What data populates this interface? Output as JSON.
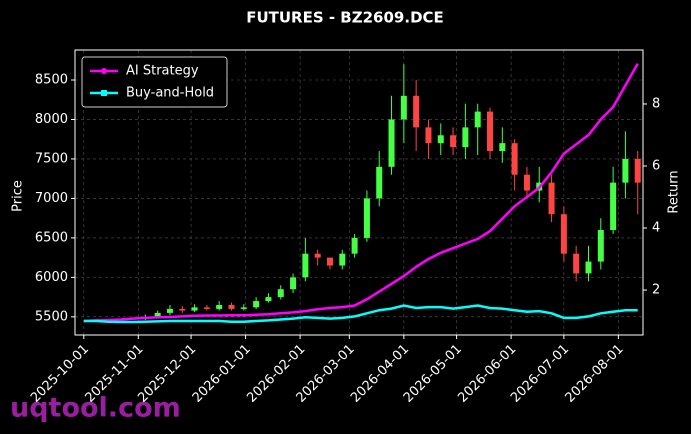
{
  "chart_data": {
    "type": "candlestick",
    "title": "FUTURES - BZ2609.DCE",
    "ylabel": "Price",
    "y2label": "Return",
    "watermark": "uqtool.com",
    "x": [
      "2025-10-01",
      "2025-10-08",
      "2025-10-15",
      "2025-10-22",
      "2025-10-29",
      "2025-11-05",
      "2025-11-12",
      "2025-11-19",
      "2025-11-26",
      "2025-12-03",
      "2025-12-10",
      "2025-12-17",
      "2025-12-24",
      "2025-12-31",
      "2026-01-07",
      "2026-01-14",
      "2026-01-21",
      "2026-01-28",
      "2026-02-04",
      "2026-02-11",
      "2026-02-18",
      "2026-02-25",
      "2026-03-04",
      "2026-03-11",
      "2026-03-18",
      "2026-03-25",
      "2026-04-01",
      "2026-04-08",
      "2026-04-15",
      "2026-04-22",
      "2026-04-29",
      "2026-05-06",
      "2026-05-13",
      "2026-05-20",
      "2026-05-27",
      "2026-06-03",
      "2026-06-10",
      "2026-06-17",
      "2026-06-24",
      "2026-07-01",
      "2026-07-08",
      "2026-07-15",
      "2026-07-22",
      "2026-07-29",
      "2026-08-05",
      "2026-08-12"
    ],
    "open": [
      null,
      null,
      null,
      null,
      null,
      5480,
      5500,
      5550,
      5600,
      5580,
      5620,
      5600,
      5650,
      5600,
      5620,
      5700,
      5750,
      5850,
      6000,
      6300,
      6250,
      6150,
      6300,
      6500,
      7000,
      7400,
      8000,
      8300,
      7900,
      7700,
      7800,
      7650,
      7900,
      8100,
      7600,
      7700,
      7300,
      7100,
      7200,
      6800,
      6300,
      6050,
      6200,
      6600,
      7200,
      7500
    ],
    "high": [
      null,
      null,
      null,
      null,
      null,
      5530,
      5580,
      5650,
      5640,
      5660,
      5650,
      5700,
      5680,
      5660,
      5750,
      5800,
      5900,
      6050,
      6500,
      6350,
      6250,
      6350,
      6550,
      7100,
      7600,
      8300,
      8700,
      8500,
      8000,
      7950,
      7900,
      8200,
      8200,
      8150,
      7900,
      7750,
      7400,
      7400,
      7300,
      6900,
      6400,
      6400,
      6750,
      7400,
      7850,
      7600
    ],
    "low": [
      null,
      null,
      null,
      null,
      null,
      5460,
      5480,
      5520,
      5550,
      5560,
      5580,
      5580,
      5580,
      5580,
      5600,
      5680,
      5720,
      5800,
      5950,
      6150,
      6100,
      6100,
      6250,
      6450,
      6900,
      7300,
      7700,
      7600,
      7500,
      7550,
      7550,
      7500,
      7550,
      7500,
      7450,
      7100,
      7000,
      6950,
      6700,
      6200,
      5950,
      5950,
      6100,
      6550,
      7000,
      6800
    ],
    "close": [
      null,
      null,
      null,
      null,
      null,
      5500,
      5550,
      5600,
      5580,
      5620,
      5600,
      5650,
      5600,
      5620,
      5700,
      5750,
      5850,
      6000,
      6300,
      6250,
      6150,
      6300,
      6500,
      7000,
      7400,
      8000,
      8300,
      7900,
      7700,
      7800,
      7650,
      7900,
      8100,
      7600,
      7700,
      7300,
      7100,
      7200,
      6800,
      6300,
      6050,
      6200,
      6600,
      7200,
      7500,
      7200
    ],
    "up_color": "#44ff44",
    "down_color": "#ff4444",
    "series": [
      {
        "name": "AI Strategy",
        "color": "#ff00ff",
        "axis": "y2",
        "values": [
          1.0,
          1.02,
          1.03,
          1.05,
          1.08,
          1.1,
          1.12,
          1.13,
          1.15,
          1.17,
          1.18,
          1.18,
          1.19,
          1.19,
          1.2,
          1.22,
          1.25,
          1.28,
          1.32,
          1.38,
          1.42,
          1.45,
          1.5,
          1.7,
          1.95,
          2.2,
          2.45,
          2.75,
          3.0,
          3.2,
          3.35,
          3.5,
          3.65,
          3.9,
          4.3,
          4.7,
          5.0,
          5.3,
          5.8,
          6.4,
          6.7,
          7.0,
          7.5,
          7.9,
          8.6,
          9.3
        ]
      },
      {
        "name": "Buy-and-Hold",
        "color": "#00ffff",
        "axis": "y2",
        "values": [
          1.0,
          1.0,
          0.98,
          0.97,
          0.97,
          0.98,
          0.99,
          1.0,
          1.0,
          1.0,
          1.0,
          1.0,
          0.98,
          0.98,
          1.0,
          1.02,
          1.05,
          1.08,
          1.12,
          1.1,
          1.08,
          1.1,
          1.15,
          1.25,
          1.35,
          1.4,
          1.5,
          1.42,
          1.45,
          1.45,
          1.4,
          1.45,
          1.5,
          1.42,
          1.4,
          1.35,
          1.3,
          1.32,
          1.25,
          1.1,
          1.1,
          1.15,
          1.25,
          1.3,
          1.35,
          1.35
        ]
      }
    ],
    "xlim": [
      "2025-09-26",
      "2026-08-15"
    ],
    "xticks": [
      "2025-10-01",
      "2025-11-01",
      "2025-12-01",
      "2026-01-01",
      "2026-02-01",
      "2026-03-01",
      "2026-04-01",
      "2026-05-01",
      "2026-06-01",
      "2026-07-01",
      "2026-08-01"
    ],
    "ylim": [
      5270,
      8880
    ],
    "yticks": [
      5500,
      6000,
      6500,
      7000,
      7500,
      8000,
      8500
    ],
    "y2lim": [
      0.55,
      9.74
    ],
    "y2ticks": [
      2,
      4,
      6,
      8
    ],
    "grid": true,
    "legend": "upper left"
  }
}
